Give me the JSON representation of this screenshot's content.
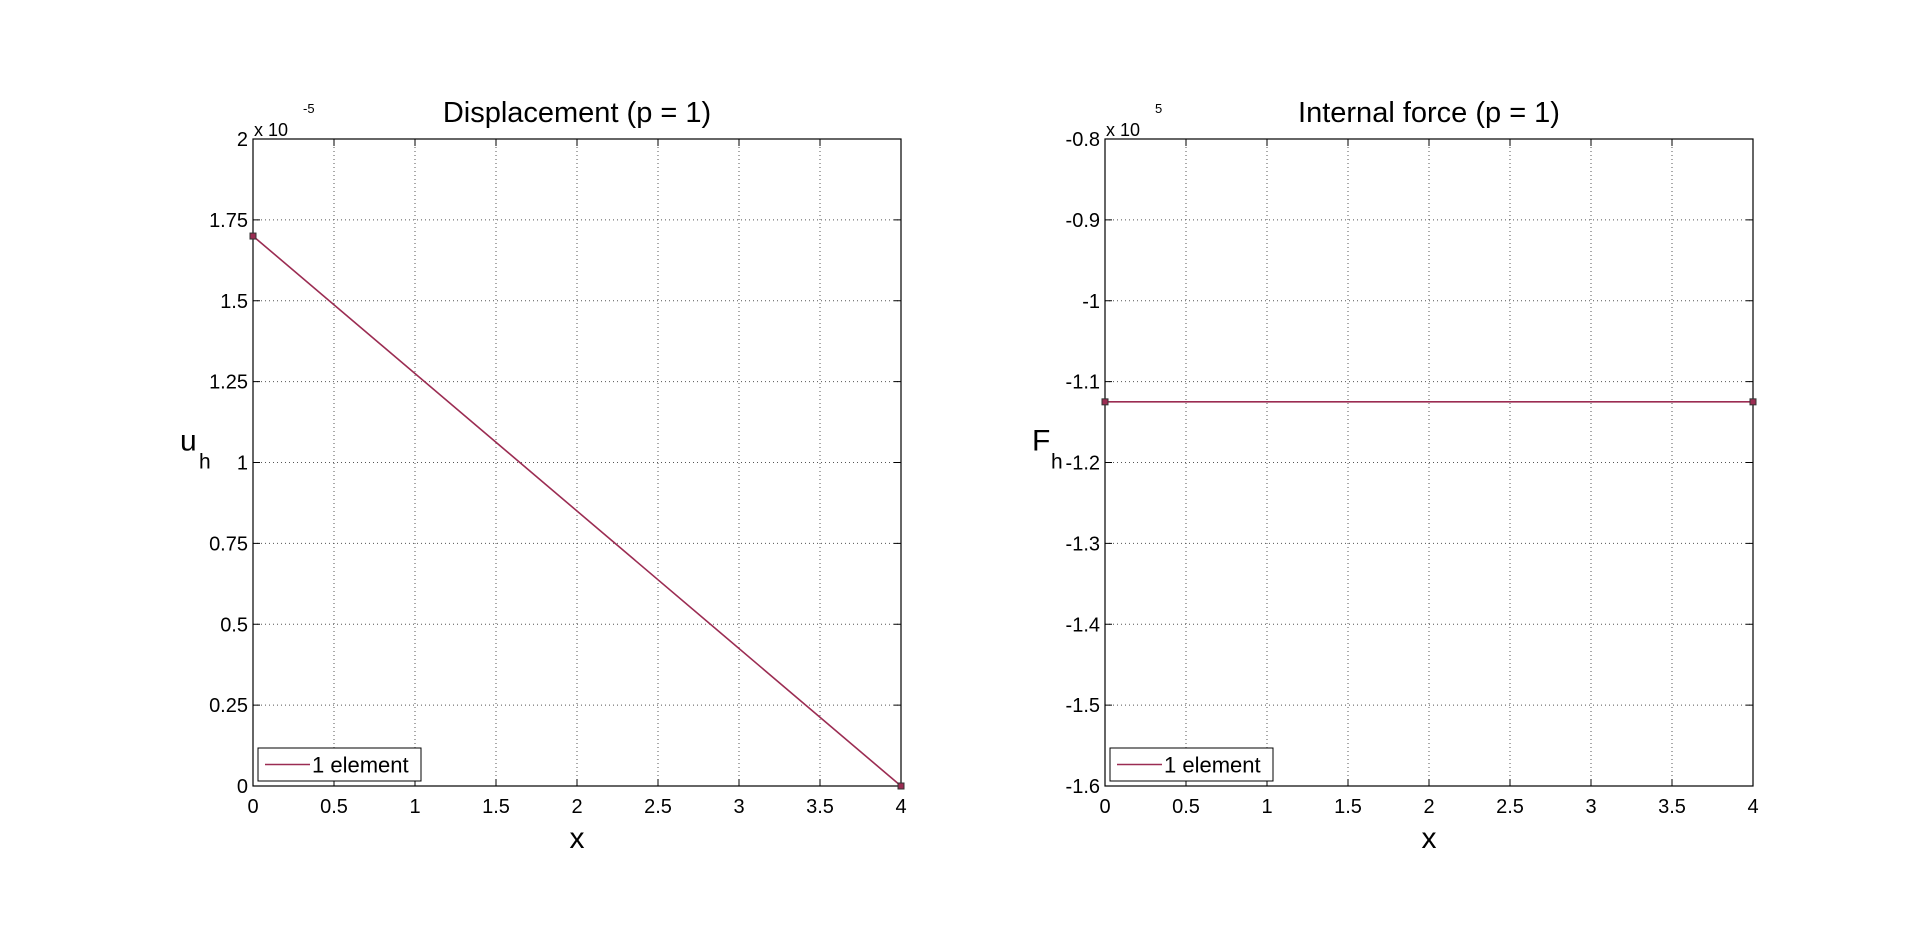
{
  "chart_data": [
    {
      "type": "line",
      "title": "Displacement (p = 1)",
      "xlabel": "x",
      "ylabel": {
        "main": "u",
        "subscript": "h"
      },
      "y_multiplier": {
        "base": "x 10",
        "exponent": "-5"
      },
      "xlim": [
        0,
        4
      ],
      "ylim": [
        0,
        2
      ],
      "x_ticks": [
        0,
        0.5,
        1,
        1.5,
        2,
        2.5,
        3,
        3.5,
        4
      ],
      "x_tick_labels": [
        "0",
        "0.5",
        "1",
        "1.5",
        "2",
        "2.5",
        "3",
        "3.5",
        "4"
      ],
      "y_ticks": [
        0,
        0.25,
        0.5,
        0.75,
        1,
        1.25,
        1.5,
        1.75,
        2
      ],
      "y_tick_labels": [
        "0",
        "0.25",
        "0.5",
        "0.75",
        "1",
        "1.25",
        "1.5",
        "1.75",
        "2"
      ],
      "grid": true,
      "legend": {
        "position": "bottom-left",
        "entries": [
          "1 element"
        ]
      },
      "series": [
        {
          "name": "1 element",
          "color": "#9b2c52",
          "x": [
            0,
            4
          ],
          "y": [
            1.7,
            0
          ]
        }
      ]
    },
    {
      "type": "line",
      "title": "Internal force (p = 1)",
      "xlabel": "x",
      "ylabel": {
        "main": "F",
        "subscript": "h"
      },
      "y_multiplier": {
        "base": "x 10",
        "exponent": "5"
      },
      "xlim": [
        0,
        4
      ],
      "ylim": [
        -1.6,
        -0.8
      ],
      "x_ticks": [
        0,
        0.5,
        1,
        1.5,
        2,
        2.5,
        3,
        3.5,
        4
      ],
      "x_tick_labels": [
        "0",
        "0.5",
        "1",
        "1.5",
        "2",
        "2.5",
        "3",
        "3.5",
        "4"
      ],
      "y_ticks": [
        -1.6,
        -1.5,
        -1.4,
        -1.3,
        -1.2,
        -1.1,
        -1,
        -0.9,
        -0.8
      ],
      "y_tick_labels": [
        "-1.6",
        "-1.5",
        "-1.4",
        "-1.3",
        "-1.2",
        "-1.1",
        "-1",
        "-0.9",
        "-0.8"
      ],
      "grid": true,
      "legend": {
        "position": "bottom-left",
        "entries": [
          "1 element"
        ]
      },
      "series": [
        {
          "name": "1 element",
          "color": "#9b2c52",
          "x": [
            0,
            4
          ],
          "y": [
            -1.125,
            -1.125
          ]
        }
      ]
    }
  ]
}
